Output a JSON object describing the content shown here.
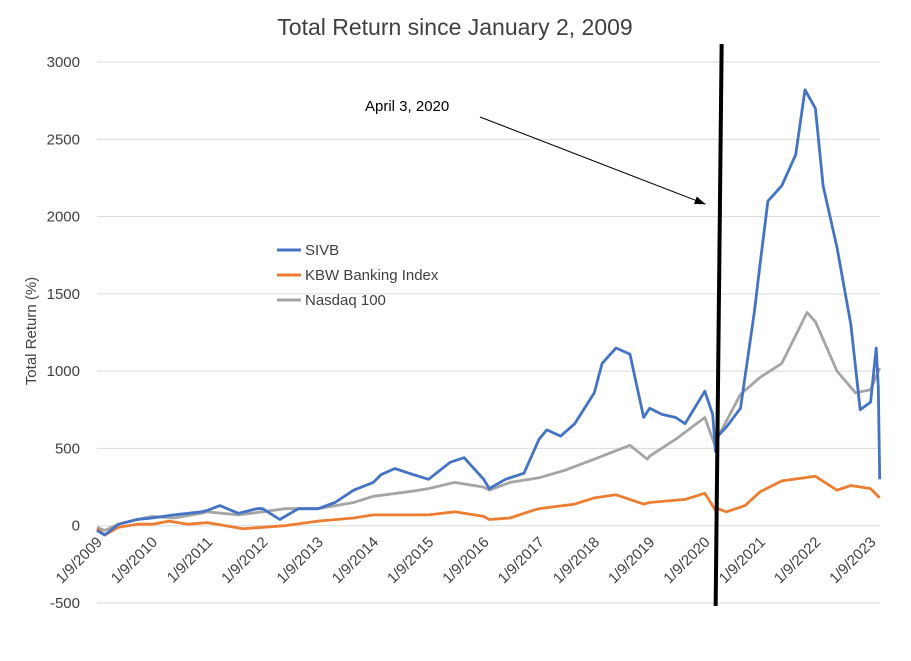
{
  "chart_data": {
    "type": "line",
    "title": "Total Return since January 2, 2009",
    "ylabel": "Total Return (%)",
    "xlabel": "",
    "ylim": [
      -500,
      3000
    ],
    "yticks": [
      -500,
      0,
      500,
      1000,
      1500,
      2000,
      2500,
      3000
    ],
    "xticks": [
      "1/9/2009",
      "1/9/2010",
      "1/9/2011",
      "1/9/2012",
      "1/9/2013",
      "1/9/2014",
      "1/9/2015",
      "1/9/2016",
      "1/9/2017",
      "1/9/2018",
      "1/9/2019",
      "1/9/2020",
      "1/9/2021",
      "1/9/2022",
      "1/9/2023"
    ],
    "grid": "horizontal",
    "legend": "center-left",
    "annotation": {
      "text": "April 3, 2020",
      "x": "2020-04-03"
    },
    "series": [
      {
        "name": "SIVB",
        "color": "#4472C4",
        "points": [
          [
            "2009-01-09",
            -30
          ],
          [
            "2009-03-01",
            -60
          ],
          [
            "2009-06-01",
            10
          ],
          [
            "2009-10-01",
            40
          ],
          [
            "2010-01-09",
            50
          ],
          [
            "2010-06-01",
            70
          ],
          [
            "2010-12-01",
            90
          ],
          [
            "2011-01-09",
            100
          ],
          [
            "2011-04-01",
            130
          ],
          [
            "2011-08-01",
            80
          ],
          [
            "2011-12-01",
            110
          ],
          [
            "2012-01-09",
            110
          ],
          [
            "2012-05-01",
            40
          ],
          [
            "2012-09-01",
            110
          ],
          [
            "2013-01-09",
            110
          ],
          [
            "2013-05-01",
            150
          ],
          [
            "2013-09-01",
            230
          ],
          [
            "2014-01-09",
            280
          ],
          [
            "2014-03-01",
            330
          ],
          [
            "2014-06-01",
            370
          ],
          [
            "2014-09-01",
            340
          ],
          [
            "2015-01-09",
            300
          ],
          [
            "2015-06-01",
            410
          ],
          [
            "2015-09-01",
            440
          ],
          [
            "2016-01-09",
            300
          ],
          [
            "2016-02-15",
            240
          ],
          [
            "2016-06-01",
            300
          ],
          [
            "2016-10-01",
            340
          ],
          [
            "2017-01-09",
            560
          ],
          [
            "2017-03-01",
            620
          ],
          [
            "2017-06-01",
            580
          ],
          [
            "2017-09-01",
            660
          ],
          [
            "2018-01-09",
            860
          ],
          [
            "2018-03-01",
            1050
          ],
          [
            "2018-06-01",
            1150
          ],
          [
            "2018-09-01",
            1110
          ],
          [
            "2018-12-01",
            700
          ],
          [
            "2019-01-09",
            760
          ],
          [
            "2019-04-01",
            720
          ],
          [
            "2019-07-01",
            700
          ],
          [
            "2019-09-01",
            660
          ],
          [
            "2020-01-09",
            870
          ],
          [
            "2020-03-01",
            720
          ],
          [
            "2020-03-20",
            480
          ],
          [
            "2020-04-03",
            580
          ],
          [
            "2020-06-01",
            640
          ],
          [
            "2020-09-01",
            760
          ],
          [
            "2020-12-01",
            1380
          ],
          [
            "2021-01-09",
            1700
          ],
          [
            "2021-03-01",
            2100
          ],
          [
            "2021-06-01",
            2200
          ],
          [
            "2021-09-01",
            2400
          ],
          [
            "2021-11-01",
            2820
          ],
          [
            "2022-01-09",
            2700
          ],
          [
            "2022-03-01",
            2200
          ],
          [
            "2022-06-01",
            1800
          ],
          [
            "2022-09-01",
            1300
          ],
          [
            "2022-11-01",
            750
          ],
          [
            "2023-01-09",
            800
          ],
          [
            "2023-02-15",
            1150
          ],
          [
            "2023-03-01",
            900
          ],
          [
            "2023-03-10",
            300
          ]
        ]
      },
      {
        "name": "KBW Banking Index",
        "color": "#ED7D31",
        "points": [
          [
            "2009-01-09",
            -20
          ],
          [
            "2009-03-01",
            -60
          ],
          [
            "2009-06-01",
            -10
          ],
          [
            "2009-10-01",
            10
          ],
          [
            "2010-01-09",
            10
          ],
          [
            "2010-05-01",
            30
          ],
          [
            "2010-09-01",
            10
          ],
          [
            "2011-01-09",
            20
          ],
          [
            "2011-09-01",
            -20
          ],
          [
            "2012-01-09",
            -10
          ],
          [
            "2012-06-01",
            0
          ],
          [
            "2013-01-09",
            30
          ],
          [
            "2013-09-01",
            50
          ],
          [
            "2014-01-09",
            70
          ],
          [
            "2014-09-01",
            70
          ],
          [
            "2015-01-09",
            70
          ],
          [
            "2015-07-01",
            90
          ],
          [
            "2016-01-09",
            60
          ],
          [
            "2016-02-15",
            40
          ],
          [
            "2016-07-01",
            50
          ],
          [
            "2016-12-01",
            100
          ],
          [
            "2017-01-09",
            110
          ],
          [
            "2017-09-01",
            140
          ],
          [
            "2018-01-09",
            180
          ],
          [
            "2018-06-01",
            200
          ],
          [
            "2018-12-01",
            140
          ],
          [
            "2019-01-09",
            150
          ],
          [
            "2019-09-01",
            170
          ],
          [
            "2020-01-09",
            210
          ],
          [
            "2020-03-20",
            100
          ],
          [
            "2020-04-03",
            110
          ],
          [
            "2020-06-01",
            90
          ],
          [
            "2020-10-01",
            130
          ],
          [
            "2021-01-09",
            220
          ],
          [
            "2021-06-01",
            290
          ],
          [
            "2022-01-09",
            320
          ],
          [
            "2022-06-01",
            230
          ],
          [
            "2022-09-01",
            260
          ],
          [
            "2023-01-09",
            240
          ],
          [
            "2023-03-10",
            180
          ]
        ]
      },
      {
        "name": "Nasdaq 100",
        "color": "#A5A5A5",
        "points": [
          [
            "2009-01-09",
            -10
          ],
          [
            "2009-03-01",
            -30
          ],
          [
            "2009-06-01",
            10
          ],
          [
            "2009-10-01",
            40
          ],
          [
            "2010-01-09",
            60
          ],
          [
            "2010-06-01",
            50
          ],
          [
            "2010-12-01",
            80
          ],
          [
            "2011-01-09",
            90
          ],
          [
            "2011-08-01",
            70
          ],
          [
            "2012-01-09",
            90
          ],
          [
            "2012-06-01",
            110
          ],
          [
            "2013-01-09",
            110
          ],
          [
            "2013-09-01",
            150
          ],
          [
            "2014-01-09",
            190
          ],
          [
            "2014-09-01",
            220
          ],
          [
            "2015-01-09",
            240
          ],
          [
            "2015-07-01",
            280
          ],
          [
            "2016-01-09",
            250
          ],
          [
            "2016-02-15",
            230
          ],
          [
            "2016-07-01",
            280
          ],
          [
            "2017-01-09",
            310
          ],
          [
            "2017-07-01",
            360
          ],
          [
            "2018-01-09",
            430
          ],
          [
            "2018-09-01",
            520
          ],
          [
            "2018-12-25",
            430
          ],
          [
            "2019-01-09",
            450
          ],
          [
            "2019-07-01",
            560
          ],
          [
            "2020-01-09",
            700
          ],
          [
            "2020-03-20",
            510
          ],
          [
            "2020-04-03",
            570
          ],
          [
            "2020-09-01",
            850
          ],
          [
            "2021-01-09",
            960
          ],
          [
            "2021-06-01",
            1050
          ],
          [
            "2021-11-15",
            1380
          ],
          [
            "2022-01-09",
            1320
          ],
          [
            "2022-06-01",
            1000
          ],
          [
            "2022-10-01",
            860
          ],
          [
            "2023-01-09",
            880
          ],
          [
            "2023-03-10",
            1020
          ]
        ]
      }
    ]
  }
}
